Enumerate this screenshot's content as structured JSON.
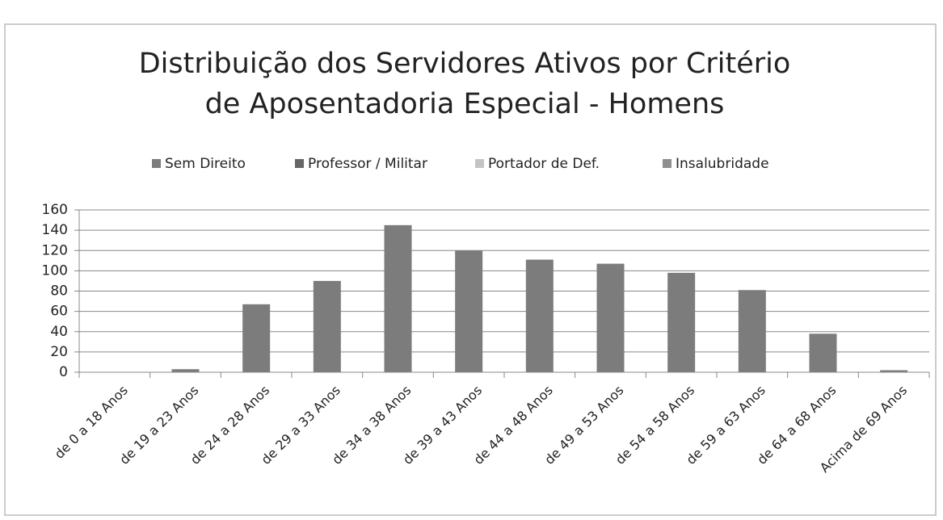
{
  "chart_data": {
    "type": "bar",
    "stacked": true,
    "title": "Distribuição dos Servidores Ativos por Critério",
    "subtitle": "de Aposentadoria Especial - Homens",
    "categories": [
      "de 0 a 18 Anos",
      "de 19 a 23 Anos",
      "de 24 a 28 Anos",
      "de 29 a 33 Anos",
      "de 34 a 38 Anos",
      "de 39 a 43 Anos",
      "de 44 a 48 Anos",
      "de 49 a 53 Anos",
      "de 54 a 58 Anos",
      "de 59 a 63 Anos",
      "de 64 a 68 Anos",
      "Acima de 69 Anos"
    ],
    "series": [
      {
        "name": "Sem Direito",
        "color": "#7c7c7c",
        "values": [
          0,
          3,
          67,
          90,
          145,
          120,
          111,
          107,
          98,
          81,
          38,
          2
        ]
      },
      {
        "name": "Professor / Militar",
        "color": "#666666",
        "values": [
          0,
          0,
          0,
          0,
          0,
          0,
          0,
          0,
          0,
          0,
          0,
          0
        ]
      },
      {
        "name": "Portador de Def.",
        "color": "#c4c4c4",
        "values": [
          0,
          0,
          0,
          0,
          0,
          0,
          0,
          0,
          0,
          0,
          0,
          0
        ]
      },
      {
        "name": "Insalubridade",
        "color": "#8e8e8e",
        "values": [
          0,
          0,
          0,
          0,
          0,
          0,
          0,
          0,
          0,
          0,
          0,
          0
        ]
      }
    ],
    "ylim": [
      0,
      160
    ],
    "yticks": [
      0,
      20,
      40,
      60,
      80,
      100,
      120,
      140,
      160
    ],
    "grid": true,
    "legend": "top"
  }
}
